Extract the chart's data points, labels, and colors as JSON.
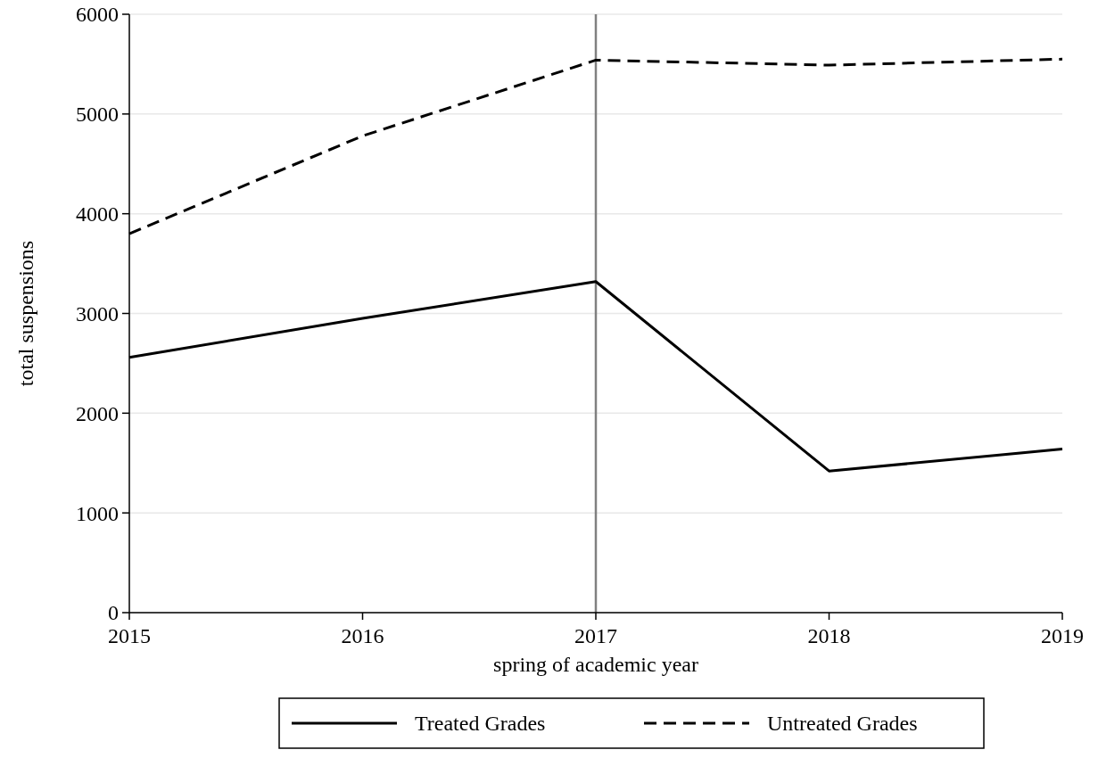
{
  "chart_data": {
    "type": "line",
    "xlabel": "spring of academic year",
    "ylabel": "total suspensions",
    "x": [
      2015,
      2016,
      2017,
      2018,
      2019
    ],
    "series": [
      {
        "name": "Treated Grades",
        "color": "#000000",
        "line_style": "solid",
        "values": [
          2560,
          2950,
          3320,
          1420,
          1640
        ]
      },
      {
        "name": "Untreated Grades",
        "color": "#000000",
        "line_style": "dashed",
        "values": [
          3800,
          4780,
          5540,
          5490,
          5550
        ]
      }
    ],
    "xlim": [
      2015,
      2019
    ],
    "xticks": [
      2015,
      2016,
      2017,
      2018,
      2019
    ],
    "ylim": [
      0,
      6000
    ],
    "yticks": [
      0,
      1000,
      2000,
      3000,
      4000,
      5000,
      6000
    ],
    "ref_lines": [
      {
        "axis": "x",
        "value": 2017,
        "color": "#808080"
      }
    ],
    "grid": "y",
    "legend": "bottom"
  }
}
